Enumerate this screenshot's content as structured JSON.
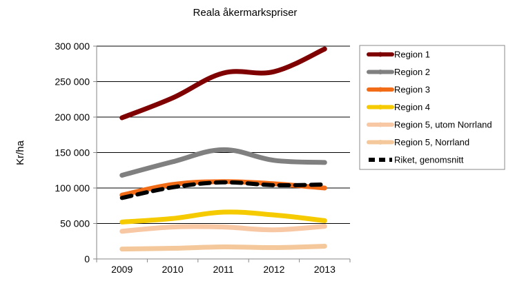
{
  "chart_data": {
    "type": "line",
    "title": "Reala åkermarkspriser",
    "xlabel": "",
    "ylabel": "Kr/ha",
    "categories": [
      "2009",
      "2010",
      "2011",
      "2012",
      "2013"
    ],
    "ylim": [
      0,
      300000
    ],
    "yticks": [
      0,
      50000,
      100000,
      150000,
      200000,
      250000,
      300000
    ],
    "ytick_labels": [
      "0",
      "50 000",
      "100 000",
      "150 000",
      "200 000",
      "250 000",
      "300 000"
    ],
    "grid": true,
    "legend_position": "right",
    "series": [
      {
        "name": "Region 1",
        "values": [
          199000,
          227000,
          262000,
          264000,
          296000
        ],
        "color": "#7f0000",
        "dashed": false
      },
      {
        "name": "Region 2",
        "values": [
          118000,
          137000,
          154000,
          139000,
          136000
        ],
        "color": "#808080",
        "dashed": false
      },
      {
        "name": "Region 3",
        "values": [
          90000,
          105000,
          109000,
          106000,
          100000
        ],
        "color": "#f26c18",
        "dashed": false
      },
      {
        "name": "Region 4",
        "values": [
          52000,
          57000,
          66000,
          62000,
          54000
        ],
        "color": "#f5cb00",
        "dashed": false
      },
      {
        "name": "Region 5, utom Norrland",
        "values": [
          39000,
          45000,
          45000,
          41000,
          46000
        ],
        "color": "#f8c7a3",
        "dashed": false
      },
      {
        "name": "Region 5, Norrland",
        "values": [
          14000,
          15000,
          17000,
          16000,
          18000
        ],
        "color": "#f4c89b",
        "dashed": false
      },
      {
        "name": "Riket, genomsnitt",
        "values": [
          86000,
          101000,
          108000,
          104000,
          105000
        ],
        "color": "#000000",
        "dashed": true
      }
    ]
  }
}
